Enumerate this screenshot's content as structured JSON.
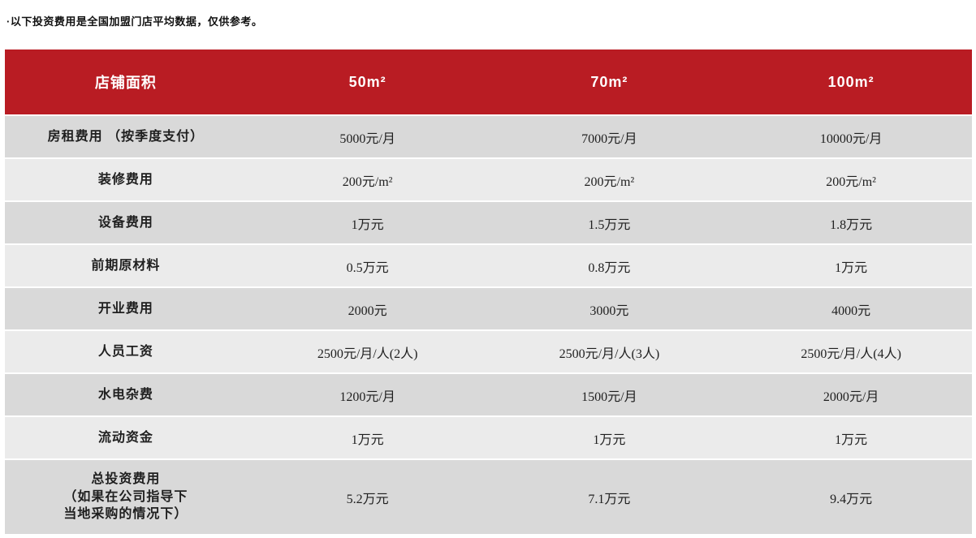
{
  "note": "·以下投资费用是全国加盟门店平均数据，仅供参考。",
  "colors": {
    "header_bg": "#b91c23",
    "header_text": "#ffffff",
    "row_dark": "#d9d9d9",
    "row_light": "#ebebeb"
  },
  "table": {
    "header": {
      "label": "店铺面积",
      "cols": [
        "50m²",
        "70m²",
        "100m²"
      ]
    },
    "rows": [
      {
        "label": "房租费用 （按季度支付）",
        "values": [
          "5000元/月",
          "7000元/月",
          "10000元/月"
        ]
      },
      {
        "label": "装修费用",
        "values": [
          "200元/m²",
          "200元/m²",
          "200元/m²"
        ]
      },
      {
        "label": "设备费用",
        "values": [
          "1万元",
          "1.5万元",
          "1.8万元"
        ]
      },
      {
        "label": "前期原材料",
        "values": [
          "0.5万元",
          "0.8万元",
          "1万元"
        ]
      },
      {
        "label": "开业费用",
        "values": [
          "2000元",
          "3000元",
          "4000元"
        ]
      },
      {
        "label": "人员工资",
        "values": [
          "2500元/月/人(2人)",
          "2500元/月/人(3人)",
          "2500元/月/人(4人)"
        ]
      },
      {
        "label": "水电杂费",
        "values": [
          "1200元/月",
          "1500元/月",
          "2000元/月"
        ]
      },
      {
        "label": "流动资金",
        "values": [
          "1万元",
          "1万元",
          "1万元"
        ]
      },
      {
        "label": "总投资费用\n（如果在公司指导下\n当地采购的情况下）",
        "values": [
          "5.2万元",
          "7.1万元",
          "9.4万元"
        ]
      }
    ]
  }
}
